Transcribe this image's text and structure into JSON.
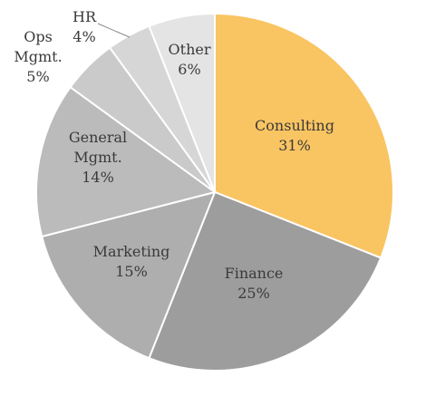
{
  "chart_data": {
    "type": "pie",
    "title": "",
    "slices": [
      {
        "label": "Consulting",
        "lines": [
          "Consulting"
        ],
        "value": 31,
        "value_text": "31%",
        "color": "#f9c462"
      },
      {
        "label": "Finance",
        "lines": [
          "Finance"
        ],
        "value": 25,
        "value_text": "25%",
        "color": "#9d9d9d"
      },
      {
        "label": "Marketing",
        "lines": [
          "Marketing"
        ],
        "value": 15,
        "value_text": "15%",
        "color": "#aeaeae"
      },
      {
        "label": "General Mgmt.",
        "lines": [
          "General",
          "Mgmt."
        ],
        "value": 14,
        "value_text": "14%",
        "color": "#bbbbbb"
      },
      {
        "label": "Ops Mgmt.",
        "lines": [
          "Ops",
          "Mgmt."
        ],
        "value": 5,
        "value_text": "5%",
        "color": "#cacaca"
      },
      {
        "label": "HR",
        "lines": [
          "HR"
        ],
        "value": 4,
        "value_text": "4%",
        "color": "#d6d6d6"
      },
      {
        "label": "Other",
        "lines": [
          "Other"
        ],
        "value": 6,
        "value_text": "6%",
        "color": "#e4e4e4"
      }
    ]
  }
}
